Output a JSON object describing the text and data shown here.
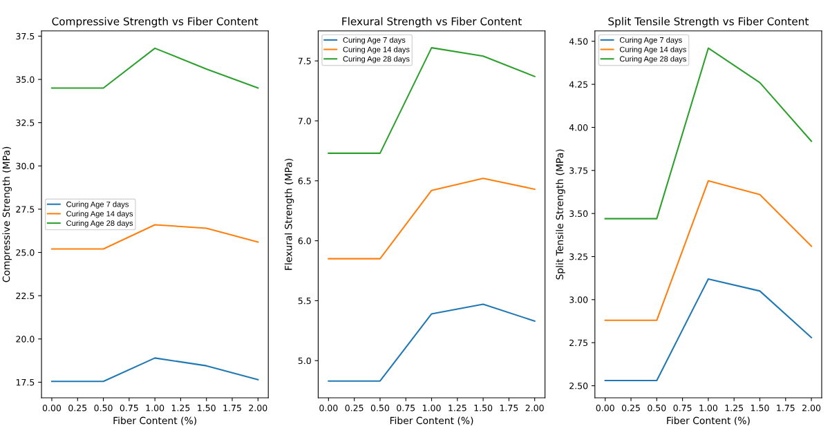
{
  "chart_data": [
    {
      "type": "line",
      "title": "Compressive Strength vs Fiber Content",
      "xlabel": "Fiber Content (%)",
      "ylabel": "Compressive Strength (MPa)",
      "x": [
        0,
        0.5,
        1.0,
        1.5,
        2.0
      ],
      "xlim": [
        -0.1,
        2.1
      ],
      "xticks": [
        {
          "value": 0,
          "label": "0.00"
        },
        {
          "value": 0.25,
          "label": "0.25"
        },
        {
          "value": 0.5,
          "label": "0.50"
        },
        {
          "value": 0.75,
          "label": "0.75"
        },
        {
          "value": 1.0,
          "label": "1.00"
        },
        {
          "value": 1.25,
          "label": "1.25"
        },
        {
          "value": 1.5,
          "label": "1.50"
        },
        {
          "value": 1.75,
          "label": "1.75"
        },
        {
          "value": 2.0,
          "label": "2.00"
        }
      ],
      "ylim": [
        16.6,
        37.8
      ],
      "yticks": [
        17.5,
        {
          "value": 20,
          "label": "20.0"
        },
        22.5,
        {
          "value": 25,
          "label": "25.0"
        },
        27.5,
        {
          "value": 30,
          "label": "30.0"
        },
        32.5,
        {
          "value": 35,
          "label": "35.0"
        },
        37.5
      ],
      "legend": "center left",
      "grid": false,
      "series": [
        {
          "name": "Curing Age 7 days",
          "color": "#1f77b4",
          "values": [
            17.55,
            17.55,
            18.9,
            18.45,
            17.65
          ]
        },
        {
          "name": "Curing Age 14 days",
          "color": "#ff7f0e",
          "values": [
            25.2,
            25.2,
            26.6,
            26.4,
            25.6
          ]
        },
        {
          "name": "Curing Age 28 days",
          "color": "#2ca02c",
          "values": [
            34.5,
            34.5,
            36.8,
            35.6,
            34.5
          ]
        }
      ]
    },
    {
      "type": "line",
      "title": "Flexural Strength vs Fiber Content",
      "xlabel": "Fiber Content (%)",
      "ylabel": "Flexural Strength (MPa)",
      "x": [
        0,
        0.5,
        1.0,
        1.5,
        2.0
      ],
      "xlim": [
        -0.1,
        2.1
      ],
      "xticks": [
        {
          "value": 0,
          "label": "0.00"
        },
        {
          "value": 0.25,
          "label": "0.25"
        },
        {
          "value": 0.5,
          "label": "0.50"
        },
        {
          "value": 0.75,
          "label": "0.75"
        },
        {
          "value": 1.0,
          "label": "1.00"
        },
        {
          "value": 1.25,
          "label": "1.25"
        },
        {
          "value": 1.5,
          "label": "1.50"
        },
        {
          "value": 1.75,
          "label": "1.75"
        },
        {
          "value": 2.0,
          "label": "2.00"
        }
      ],
      "ylim": [
        4.69,
        7.75
      ],
      "yticks": [
        {
          "value": 5,
          "label": "5.0"
        },
        5.5,
        {
          "value": 6,
          "label": "6.0"
        },
        6.5,
        {
          "value": 7,
          "label": "7.0"
        },
        7.5
      ],
      "legend": "top left",
      "grid": false,
      "series": [
        {
          "name": "Curing Age 7 days",
          "color": "#1f77b4",
          "values": [
            4.83,
            4.83,
            5.39,
            5.47,
            5.33
          ]
        },
        {
          "name": "Curing Age 14 days",
          "color": "#ff7f0e",
          "values": [
            5.85,
            5.85,
            6.42,
            6.52,
            6.43
          ]
        },
        {
          "name": "Curing Age 28 days",
          "color": "#2ca02c",
          "values": [
            6.73,
            6.73,
            7.61,
            7.54,
            7.37
          ]
        }
      ]
    },
    {
      "type": "line",
      "title": "Split Tensile Strength vs Fiber Content",
      "xlabel": "Fiber Content (%)",
      "ylabel": "Split Tensile Strength (MPa)",
      "x": [
        0,
        0.5,
        1.0,
        1.5,
        2.0
      ],
      "xlim": [
        -0.1,
        2.1
      ],
      "xticks": [
        {
          "value": 0,
          "label": "0.00"
        },
        {
          "value": 0.25,
          "label": "0.25"
        },
        {
          "value": 0.5,
          "label": "0.50"
        },
        {
          "value": 0.75,
          "label": "0.75"
        },
        {
          "value": 1.0,
          "label": "1.00"
        },
        {
          "value": 1.25,
          "label": "1.25"
        },
        {
          "value": 1.5,
          "label": "1.50"
        },
        {
          "value": 1.75,
          "label": "1.75"
        },
        {
          "value": 2.0,
          "label": "2.00"
        }
      ],
      "ylim": [
        2.43,
        4.56
      ],
      "yticks": [
        {
          "value": 2.5,
          "label": "2.50"
        },
        2.75,
        {
          "value": 3,
          "label": "3.00"
        },
        3.25,
        {
          "value": 3.5,
          "label": "3.50"
        },
        3.75,
        {
          "value": 4,
          "label": "4.00"
        },
        4.25,
        {
          "value": 4.5,
          "label": "4.50"
        }
      ],
      "legend": "top left",
      "grid": false,
      "series": [
        {
          "name": "Curing Age 7 days",
          "color": "#1f77b4",
          "values": [
            2.53,
            2.53,
            3.12,
            3.05,
            2.78
          ]
        },
        {
          "name": "Curing Age 14 days",
          "color": "#ff7f0e",
          "values": [
            2.88,
            2.88,
            3.69,
            3.61,
            3.31
          ]
        },
        {
          "name": "Curing Age 28 days",
          "color": "#2ca02c",
          "values": [
            3.47,
            3.47,
            4.46,
            4.26,
            3.92
          ]
        }
      ]
    }
  ]
}
